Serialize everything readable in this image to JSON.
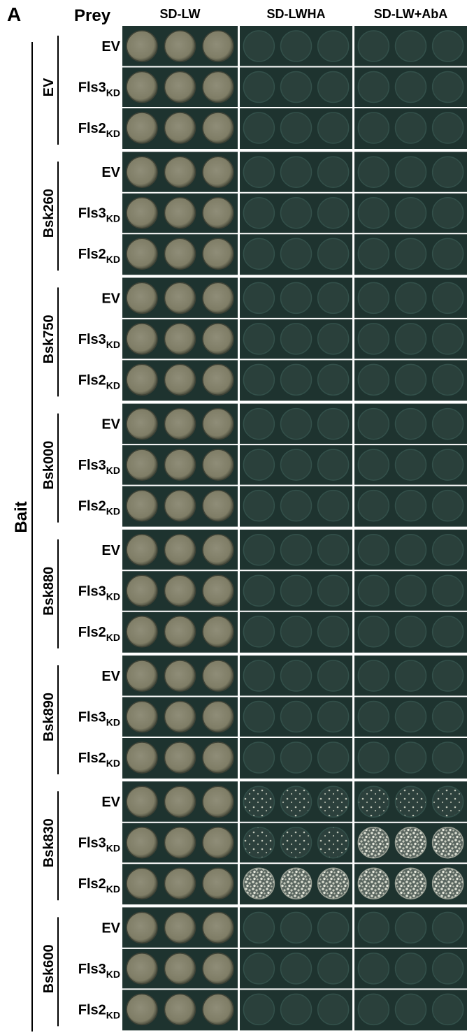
{
  "panel": "A",
  "prey_header": "Prey",
  "bait_label": "Bait",
  "columns": [
    "SD-LW",
    "SD-LWHA",
    "SD-LW+AbA"
  ],
  "preys": [
    {
      "name": "EV"
    },
    {
      "name": "Fls3",
      "sub": "KD"
    },
    {
      "name": "Fls2",
      "sub": "KD"
    }
  ],
  "baits": [
    "EV",
    "Bsk260",
    "Bsk750",
    "Bsk000",
    "Bsk880",
    "Bsk890",
    "Bsk830",
    "Bsk600"
  ]
}
